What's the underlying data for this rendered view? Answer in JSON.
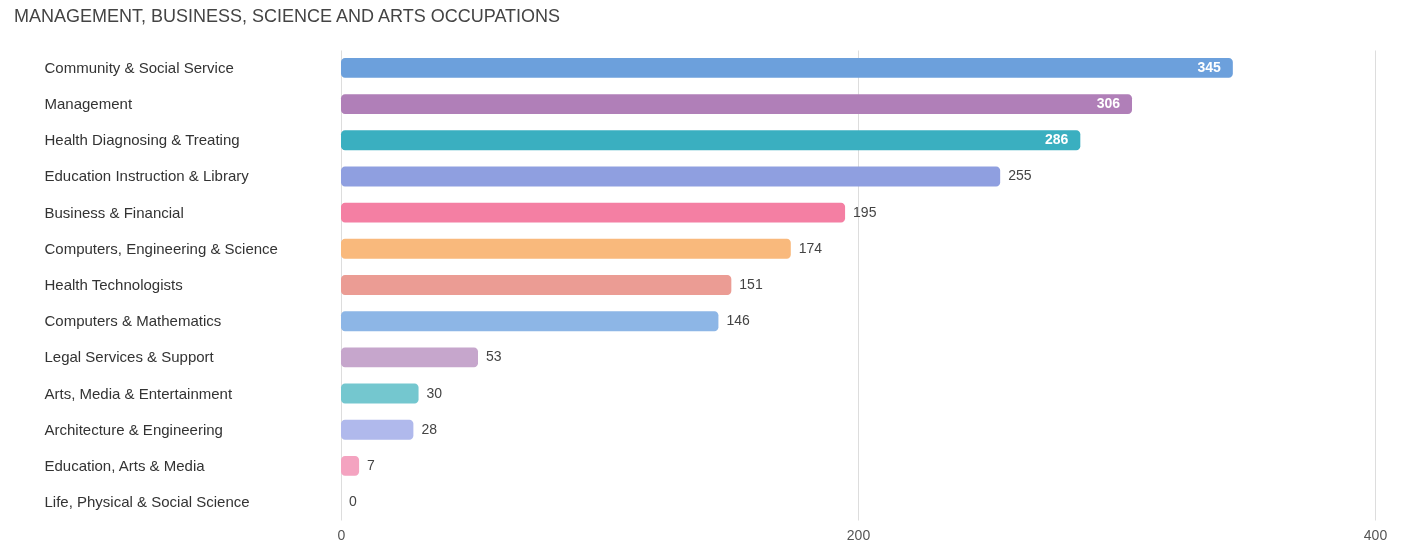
{
  "chart_data": {
    "type": "bar",
    "orientation": "horizontal",
    "title": "MANAGEMENT, BUSINESS, SCIENCE AND ARTS OCCUPATIONS",
    "categories": [
      "Community & Social Service",
      "Management",
      "Health Diagnosing & Treating",
      "Education Instruction & Library",
      "Business & Financial",
      "Computers, Engineering & Science",
      "Health Technologists",
      "Computers & Mathematics",
      "Legal Services & Support",
      "Arts, Media & Entertainment",
      "Architecture & Engineering",
      "Education, Arts & Media",
      "Life, Physical & Social Science"
    ],
    "values": [
      345,
      306,
      286,
      255,
      195,
      174,
      151,
      146,
      53,
      30,
      28,
      7,
      0
    ],
    "colors": [
      "#6ca0dc",
      "#b07fb8",
      "#3aafc0",
      "#8f9fe0",
      "#f47fa3",
      "#f9b97c",
      "#eb9c94",
      "#8db6e6",
      "#c6a6cc",
      "#74c7cf",
      "#b0b9ec",
      "#f4a3c0",
      "#f9c99d"
    ],
    "xlim": [
      0,
      400
    ],
    "xticks": [
      0,
      200,
      400
    ],
    "grid": true,
    "data_labels": true,
    "legend": false
  }
}
